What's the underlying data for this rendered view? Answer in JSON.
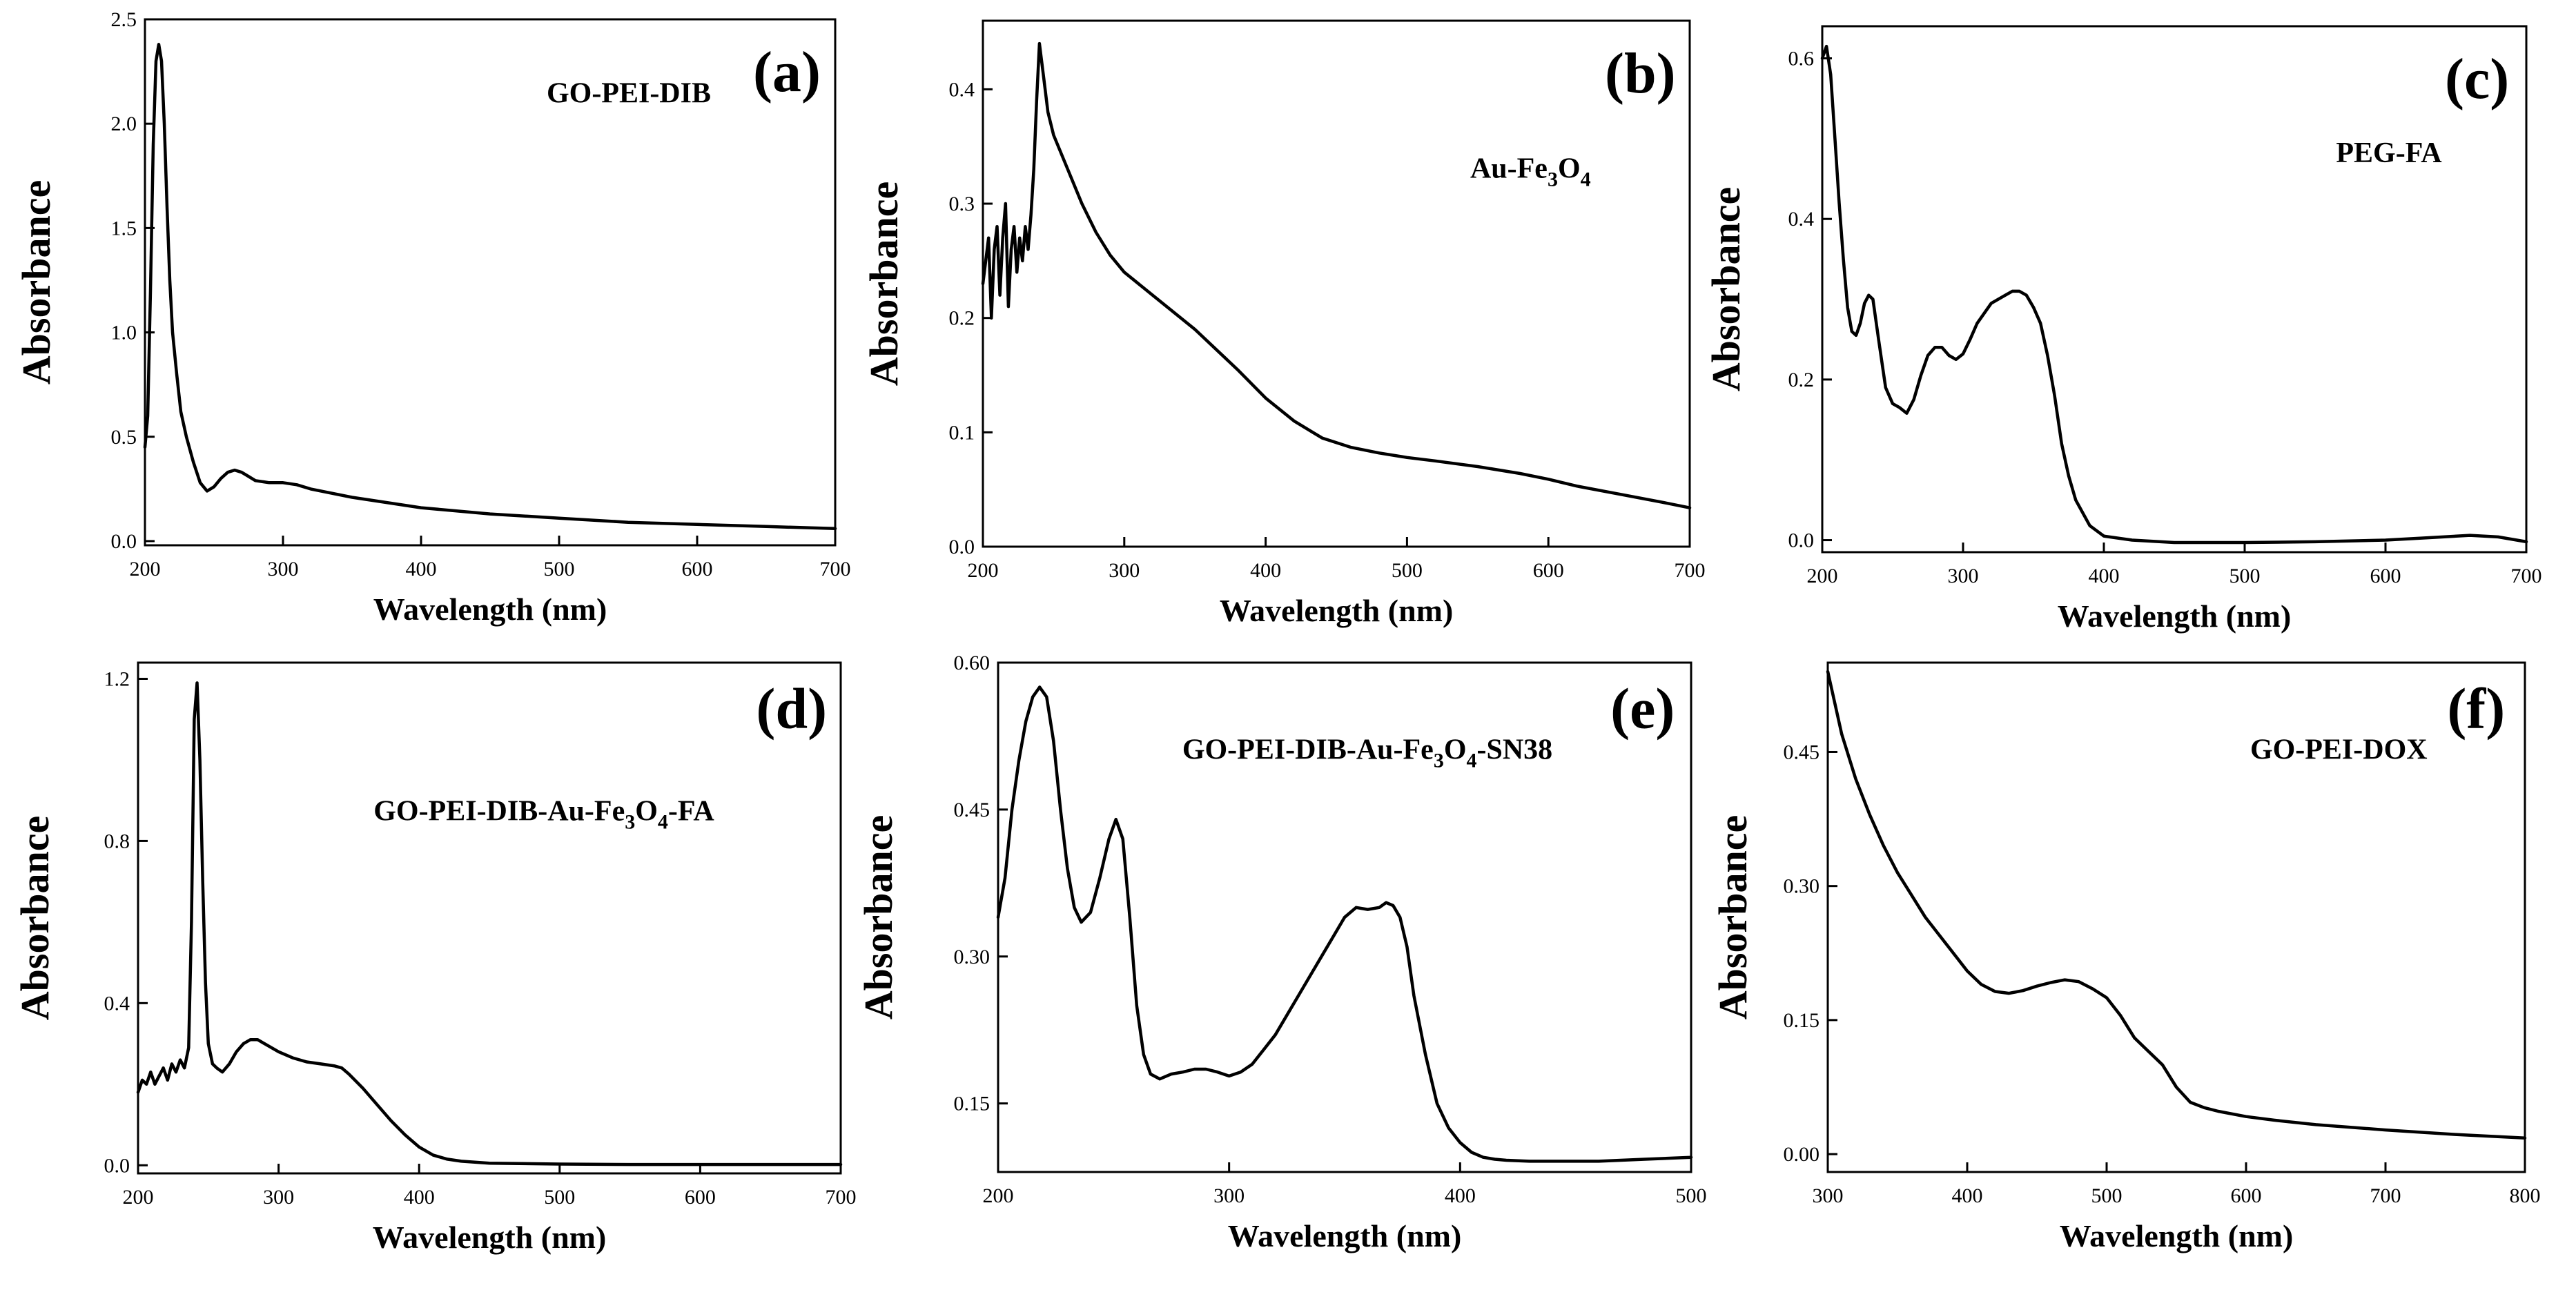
{
  "chart_data": [
    {
      "type": "line",
      "panel": "(a)",
      "sample_label": "GO-PEI-DIB",
      "xlabel": "Wavelength (nm)",
      "ylabel": "Absorbance",
      "xlim": [
        200,
        700
      ],
      "ylim": [
        -0.02,
        2.5
      ],
      "xticks": [
        200,
        300,
        400,
        500,
        600,
        700
      ],
      "yticks": [
        0.0,
        0.5,
        1.0,
        1.5,
        2.0,
        2.5
      ],
      "ytick_decimals": 1,
      "series": [
        {
          "name": "GO-PEI-DIB",
          "x": [
            200,
            202,
            204,
            206,
            208,
            210,
            212,
            214,
            216,
            218,
            220,
            223,
            226,
            230,
            235,
            240,
            245,
            250,
            255,
            260,
            265,
            270,
            275,
            280,
            290,
            300,
            310,
            320,
            350,
            400,
            450,
            500,
            550,
            600,
            650,
            700
          ],
          "y": [
            0.45,
            0.6,
            1.2,
            1.9,
            2.3,
            2.38,
            2.3,
            2.0,
            1.6,
            1.25,
            1.0,
            0.8,
            0.62,
            0.5,
            0.38,
            0.28,
            0.24,
            0.26,
            0.3,
            0.33,
            0.34,
            0.33,
            0.31,
            0.29,
            0.28,
            0.28,
            0.27,
            0.25,
            0.21,
            0.16,
            0.13,
            0.11,
            0.09,
            0.08,
            0.07,
            0.06
          ]
        }
      ]
    },
    {
      "type": "line",
      "panel": "(b)",
      "sample_label": "Au-Fe3O4",
      "sample_label_parts": {
        "a": "Au-Fe",
        "b": "3",
        "c": "O",
        "d": "4",
        "e": ""
      },
      "xlabel": "Wavelength (nm)",
      "ylabel": "Absorbance",
      "xlim": [
        200,
        700
      ],
      "ylim": [
        0.0,
        0.46
      ],
      "xticks": [
        200,
        300,
        400,
        500,
        600,
        700
      ],
      "yticks": [
        0.0,
        0.1,
        0.2,
        0.3,
        0.4
      ],
      "ytick_decimals": 1,
      "series": [
        {
          "name": "Au-Fe3O4",
          "x": [
            200,
            202,
            204,
            206,
            208,
            210,
            212,
            214,
            216,
            218,
            220,
            222,
            224,
            226,
            228,
            230,
            232,
            234,
            236,
            238,
            240,
            243,
            246,
            250,
            260,
            270,
            280,
            290,
            300,
            320,
            350,
            380,
            400,
            420,
            440,
            460,
            480,
            500,
            520,
            550,
            580,
            600,
            620,
            650,
            680,
            700
          ],
          "y": [
            0.23,
            0.25,
            0.27,
            0.2,
            0.26,
            0.28,
            0.22,
            0.27,
            0.3,
            0.21,
            0.26,
            0.28,
            0.24,
            0.27,
            0.25,
            0.28,
            0.26,
            0.29,
            0.33,
            0.39,
            0.44,
            0.41,
            0.38,
            0.36,
            0.33,
            0.3,
            0.275,
            0.255,
            0.24,
            0.22,
            0.19,
            0.155,
            0.13,
            0.11,
            0.095,
            0.087,
            0.082,
            0.078,
            0.075,
            0.07,
            0.064,
            0.059,
            0.053,
            0.046,
            0.039,
            0.034
          ]
        }
      ]
    },
    {
      "type": "line",
      "panel": "(c)",
      "sample_label": "PEG-FA",
      "xlabel": "Wavelength (nm)",
      "ylabel": "Absorbance",
      "xlim": [
        200,
        700
      ],
      "ylim": [
        -0.015,
        0.64
      ],
      "xticks": [
        200,
        300,
        400,
        500,
        600,
        700
      ],
      "yticks": [
        0.0,
        0.2,
        0.4,
        0.6
      ],
      "ytick_decimals": 1,
      "series": [
        {
          "name": "PEG-FA",
          "x": [
            200,
            203,
            206,
            209,
            212,
            215,
            218,
            221,
            224,
            227,
            230,
            233,
            236,
            240,
            245,
            250,
            255,
            260,
            265,
            270,
            275,
            280,
            285,
            290,
            295,
            300,
            305,
            310,
            320,
            330,
            335,
            340,
            345,
            350,
            355,
            360,
            365,
            370,
            375,
            380,
            390,
            400,
            420,
            450,
            500,
            550,
            600,
            630,
            660,
            680,
            700
          ],
          "y": [
            0.6,
            0.615,
            0.58,
            0.5,
            0.42,
            0.35,
            0.29,
            0.26,
            0.255,
            0.27,
            0.295,
            0.305,
            0.3,
            0.25,
            0.19,
            0.17,
            0.165,
            0.158,
            0.175,
            0.205,
            0.23,
            0.24,
            0.24,
            0.23,
            0.225,
            0.232,
            0.25,
            0.27,
            0.295,
            0.305,
            0.31,
            0.31,
            0.305,
            0.29,
            0.27,
            0.23,
            0.18,
            0.12,
            0.08,
            0.05,
            0.018,
            0.005,
            0.0,
            -0.003,
            -0.003,
            -0.002,
            0.0,
            0.003,
            0.006,
            0.004,
            -0.002
          ]
        }
      ]
    },
    {
      "type": "line",
      "panel": "(d)",
      "sample_label": "GO-PEI-DIB-Au-Fe3O4-FA",
      "sample_label_parts": {
        "a": "GO-PEI-DIB-Au-Fe",
        "b": "3",
        "c": "O",
        "d": "4",
        "e": "-FA"
      },
      "xlabel": "Wavelength (nm)",
      "ylabel": "Absorbance",
      "xlim": [
        200,
        700
      ],
      "ylim": [
        -0.02,
        1.24
      ],
      "xticks": [
        200,
        300,
        400,
        500,
        600,
        700
      ],
      "xtick_labels": [
        "200",
        "300",
        "400",
        "500",
        "600",
        "700"
      ],
      "yticks": [
        0.0,
        0.4,
        0.8,
        1.2
      ],
      "ytick_decimals": 1,
      "series": [
        {
          "name": "GO-PEI-DIB-Au-Fe3O4-FA",
          "x": [
            200,
            203,
            206,
            209,
            212,
            215,
            218,
            221,
            224,
            227,
            230,
            233,
            236,
            238,
            240,
            242,
            244,
            246,
            248,
            250,
            253,
            256,
            260,
            265,
            270,
            275,
            280,
            285,
            290,
            295,
            300,
            310,
            320,
            330,
            340,
            345,
            350,
            360,
            370,
            380,
            390,
            400,
            410,
            420,
            430,
            450,
            500,
            550,
            600,
            650,
            700
          ],
          "y": [
            0.18,
            0.21,
            0.2,
            0.23,
            0.2,
            0.22,
            0.24,
            0.21,
            0.25,
            0.23,
            0.26,
            0.24,
            0.29,
            0.6,
            1.1,
            1.19,
            1.0,
            0.7,
            0.45,
            0.3,
            0.25,
            0.24,
            0.23,
            0.25,
            0.28,
            0.3,
            0.31,
            0.31,
            0.3,
            0.29,
            0.28,
            0.265,
            0.255,
            0.25,
            0.245,
            0.24,
            0.225,
            0.19,
            0.15,
            0.11,
            0.075,
            0.045,
            0.025,
            0.015,
            0.01,
            0.005,
            0.003,
            0.002,
            0.002,
            0.002,
            0.002
          ]
        }
      ]
    },
    {
      "type": "line",
      "panel": "(e)",
      "sample_label": "GO-PEI-DIB-Au-Fe3O4-SN38",
      "sample_label_parts": {
        "a": "GO-PEI-DIB-Au-Fe",
        "b": "3",
        "c": "O",
        "d": "4",
        "e": "-SN38"
      },
      "xlabel": "Wavelength (nm)",
      "ylabel": "Absorbance",
      "xlim": [
        200,
        500
      ],
      "ylim": [
        0.08,
        0.6
      ],
      "xticks": [
        200,
        300,
        400,
        500
      ],
      "yticks": [
        0.15,
        0.3,
        0.45,
        0.6
      ],
      "ytick_decimals": 2,
      "series": [
        {
          "name": "GO-PEI-DIB-Au-Fe3O4-SN38",
          "x": [
            200,
            203,
            206,
            209,
            212,
            215,
            218,
            221,
            224,
            227,
            230,
            233,
            236,
            240,
            244,
            248,
            251,
            254,
            257,
            260,
            263,
            266,
            270,
            275,
            280,
            285,
            290,
            295,
            300,
            305,
            310,
            315,
            320,
            330,
            340,
            345,
            350,
            355,
            360,
            365,
            368,
            371,
            374,
            377,
            380,
            385,
            390,
            395,
            400,
            405,
            410,
            415,
            420,
            430,
            440,
            450,
            460,
            480,
            500
          ],
          "y": [
            0.34,
            0.38,
            0.45,
            0.5,
            0.54,
            0.565,
            0.575,
            0.565,
            0.52,
            0.45,
            0.39,
            0.35,
            0.335,
            0.345,
            0.38,
            0.42,
            0.44,
            0.42,
            0.34,
            0.25,
            0.2,
            0.18,
            0.175,
            0.18,
            0.182,
            0.185,
            0.185,
            0.182,
            0.178,
            0.182,
            0.19,
            0.205,
            0.22,
            0.26,
            0.3,
            0.32,
            0.34,
            0.35,
            0.348,
            0.35,
            0.355,
            0.352,
            0.34,
            0.31,
            0.26,
            0.2,
            0.15,
            0.125,
            0.11,
            0.1,
            0.095,
            0.093,
            0.092,
            0.091,
            0.091,
            0.091,
            0.091,
            0.093,
            0.095
          ]
        }
      ]
    },
    {
      "type": "line",
      "panel": "(f)",
      "sample_label": "GO-PEI-DOX",
      "xlabel": "Wavelength (nm)",
      "ylabel": "Absorbance",
      "xlim": [
        300,
        800
      ],
      "ylim": [
        -0.02,
        0.55
      ],
      "xticks": [
        300,
        400,
        500,
        600,
        700,
        800
      ],
      "yticks": [
        0.0,
        0.15,
        0.3,
        0.45
      ],
      "ytick_decimals": 2,
      "series": [
        {
          "name": "GO-PEI-DOX",
          "x": [
            300,
            310,
            320,
            330,
            340,
            350,
            360,
            370,
            380,
            390,
            400,
            410,
            420,
            430,
            440,
            450,
            460,
            470,
            480,
            490,
            500,
            510,
            520,
            530,
            540,
            550,
            560,
            570,
            580,
            600,
            620,
            650,
            700,
            750,
            800
          ],
          "y": [
            0.54,
            0.47,
            0.42,
            0.38,
            0.345,
            0.315,
            0.29,
            0.265,
            0.245,
            0.225,
            0.205,
            0.19,
            0.182,
            0.18,
            0.183,
            0.188,
            0.192,
            0.195,
            0.193,
            0.185,
            0.175,
            0.155,
            0.13,
            0.115,
            0.1,
            0.075,
            0.058,
            0.052,
            0.048,
            0.042,
            0.038,
            0.033,
            0.027,
            0.022,
            0.018
          ]
        }
      ]
    }
  ]
}
